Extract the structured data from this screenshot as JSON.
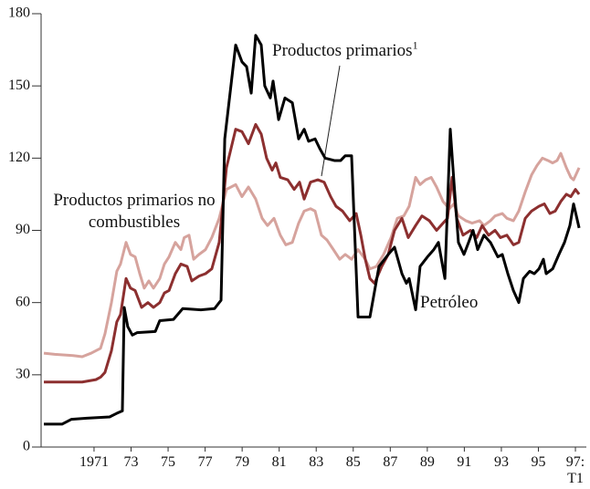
{
  "chart_data": {
    "type": "line",
    "xlim": [
      1968.2,
      1997.6
    ],
    "ylim": [
      0,
      180
    ],
    "yticks": [
      0,
      30,
      60,
      90,
      120,
      150,
      180
    ],
    "xticks": [
      {
        "value": 1971,
        "label": "1971"
      },
      {
        "value": 1973,
        "label": "73"
      },
      {
        "value": 1975,
        "label": "75"
      },
      {
        "value": 1977,
        "label": "77"
      },
      {
        "value": 1979,
        "label": "79"
      },
      {
        "value": 1981,
        "label": "81"
      },
      {
        "value": 1983,
        "label": "83"
      },
      {
        "value": 1985,
        "label": "85"
      },
      {
        "value": 1987,
        "label": "87"
      },
      {
        "value": 1989,
        "label": "89"
      },
      {
        "value": 1991,
        "label": "91"
      },
      {
        "value": 1993,
        "label": "93"
      },
      {
        "value": 1995,
        "label": "95"
      },
      {
        "value": 1997,
        "label": "97:\nT1"
      }
    ],
    "series": [
      {
        "name": "Productos primarios no combustibles",
        "color": "#d6a39d",
        "x": [
          1968.29,
          1968.88,
          1969.87,
          1970.36,
          1970.85,
          1971.35,
          1971.59,
          1971.94,
          1972.23,
          1972.43,
          1972.73,
          1972.97,
          1973.22,
          1973.47,
          1973.71,
          1973.96,
          1974.21,
          1974.55,
          1974.8,
          1975.05,
          1975.39,
          1975.69,
          1975.87,
          1976.13,
          1976.38,
          1976.67,
          1977.02,
          1977.36,
          1977.76,
          1978.15,
          1978.65,
          1978.99,
          1979.34,
          1979.73,
          1980.08,
          1980.37,
          1980.72,
          1981.06,
          1981.36,
          1981.71,
          1982.05,
          1982.35,
          1982.69,
          1982.94,
          1983.28,
          1983.58,
          1983.93,
          1984.27,
          1984.57,
          1984.91,
          1985.26,
          1985.65,
          1985.9,
          1986.25,
          1986.64,
          1987.04,
          1987.38,
          1987.73,
          1988.02,
          1988.37,
          1988.61,
          1988.91,
          1989.21,
          1989.5,
          1989.85,
          1990.19,
          1990.44,
          1990.68,
          1991.08,
          1991.42,
          1991.82,
          1992.06,
          1992.41,
          1992.66,
          1993.05,
          1993.3,
          1993.65,
          1993.94,
          1994.29,
          1994.63,
          1994.93,
          1995.22,
          1995.52,
          1995.77,
          1996.01,
          1996.21,
          1996.51,
          1996.75,
          1996.9,
          1997.2
        ],
        "values": [
          39,
          38.5,
          38,
          37.5,
          39,
          41,
          47,
          60,
          73,
          76,
          85,
          80,
          79,
          72,
          66,
          69,
          66,
          70,
          76,
          79,
          85,
          82,
          87,
          88,
          78,
          80,
          82,
          87,
          95,
          107,
          109,
          104,
          108,
          103,
          95,
          92,
          95,
          88,
          84,
          85,
          93,
          98,
          99,
          98,
          88,
          86,
          82,
          78,
          80,
          78,
          82,
          78,
          74,
          75,
          80,
          87,
          95,
          96,
          100,
          112,
          109,
          111,
          112,
          108,
          102,
          99,
          101,
          96,
          94,
          93,
          94,
          92,
          94,
          96,
          97,
          95,
          94,
          98,
          106,
          113,
          117,
          120,
          119,
          118,
          119,
          122,
          116,
          112,
          111,
          116
        ]
      },
      {
        "name": "Productos primarios",
        "note": "1",
        "color": "#8c2f2f",
        "x": [
          1968.29,
          1969.37,
          1970.36,
          1971.1,
          1971.35,
          1971.59,
          1971.94,
          1972.23,
          1972.43,
          1972.73,
          1972.97,
          1973.22,
          1973.57,
          1973.91,
          1974.21,
          1974.55,
          1974.8,
          1975.05,
          1975.39,
          1975.69,
          1976.03,
          1976.28,
          1976.67,
          1977.02,
          1977.36,
          1977.76,
          1978.15,
          1978.65,
          1978.99,
          1979.34,
          1979.73,
          1980.03,
          1980.32,
          1980.62,
          1980.82,
          1981.06,
          1981.46,
          1981.81,
          1982.1,
          1982.35,
          1982.69,
          1983.09,
          1983.43,
          1983.78,
          1984.07,
          1984.42,
          1984.81,
          1985.16,
          1985.41,
          1985.65,
          1985.9,
          1986.15,
          1986.54,
          1986.89,
          1987.23,
          1987.63,
          1987.97,
          1988.37,
          1988.71,
          1989.11,
          1989.5,
          1989.85,
          1990.09,
          1990.34,
          1990.59,
          1990.93,
          1991.33,
          1991.67,
          1991.96,
          1992.31,
          1992.66,
          1992.95,
          1993.3,
          1993.65,
          1993.94,
          1994.29,
          1994.63,
          1995.03,
          1995.32,
          1995.62,
          1995.91,
          1996.21,
          1996.51,
          1996.75,
          1997.0,
          1997.2
        ],
        "values": [
          27,
          27,
          27,
          28,
          29,
          31,
          40,
          52,
          55,
          70,
          66,
          65,
          58,
          60,
          58,
          60,
          64,
          65,
          72,
          76,
          75,
          69,
          71,
          72,
          74,
          85,
          116,
          132,
          131,
          126,
          134,
          130,
          120,
          115,
          118,
          112,
          111,
          107,
          110,
          103,
          110,
          111,
          110,
          104,
          100,
          98,
          94,
          97,
          88,
          78,
          70,
          68,
          75,
          80,
          90,
          95,
          87,
          92,
          96,
          94,
          90,
          93,
          95,
          112,
          95,
          88,
          90,
          87,
          92,
          88,
          90,
          87,
          88,
          84,
          85,
          95,
          98,
          100,
          101,
          97,
          98,
          102,
          105,
          104,
          107,
          105
        ]
      },
      {
        "name": "Petróleo",
        "color": "#000000",
        "x": [
          1968.29,
          1969.27,
          1969.77,
          1970.61,
          1971.84,
          1972.23,
          1972.53,
          1972.63,
          1972.82,
          1973.07,
          1973.32,
          1974.31,
          1974.55,
          1975.29,
          1975.79,
          1976.77,
          1977.51,
          1977.86,
          1978.06,
          1978.65,
          1978.99,
          1979.24,
          1979.49,
          1979.73,
          1980.03,
          1980.22,
          1980.52,
          1980.67,
          1980.97,
          1981.31,
          1981.71,
          1982.05,
          1982.35,
          1982.59,
          1982.94,
          1983.19,
          1983.48,
          1983.98,
          1984.32,
          1984.57,
          1984.91,
          1985.26,
          1985.9,
          1986.39,
          1986.89,
          1987.23,
          1987.63,
          1987.87,
          1988.02,
          1988.37,
          1988.61,
          1989.01,
          1989.35,
          1989.6,
          1989.95,
          1990.24,
          1990.44,
          1990.68,
          1990.98,
          1991.23,
          1991.47,
          1991.72,
          1992.06,
          1992.41,
          1992.81,
          1993.05,
          1993.35,
          1993.65,
          1993.94,
          1994.19,
          1994.53,
          1994.78,
          1995.03,
          1995.27,
          1995.42,
          1995.77,
          1996.11,
          1996.41,
          1996.7,
          1996.9,
          1997.2
        ],
        "values": [
          9.5,
          9.5,
          11.5,
          12,
          12.5,
          14,
          15,
          58,
          50,
          46.5,
          47.5,
          48,
          52.5,
          53,
          57.5,
          57,
          57.5,
          61,
          128,
          167,
          160,
          158,
          147,
          171,
          167,
          150,
          145,
          152,
          136,
          145,
          143,
          128,
          132,
          127,
          128,
          124,
          120,
          119,
          119,
          121,
          121,
          54,
          54,
          75,
          80,
          83,
          72,
          68,
          70,
          57,
          75,
          79,
          82,
          85,
          70,
          132,
          110,
          85,
          80,
          85,
          90,
          82,
          88,
          85,
          79,
          80,
          72,
          65,
          60,
          70,
          73,
          72,
          74,
          78,
          72,
          74,
          80,
          85,
          92,
          101,
          91
        ]
      }
    ]
  }
}
